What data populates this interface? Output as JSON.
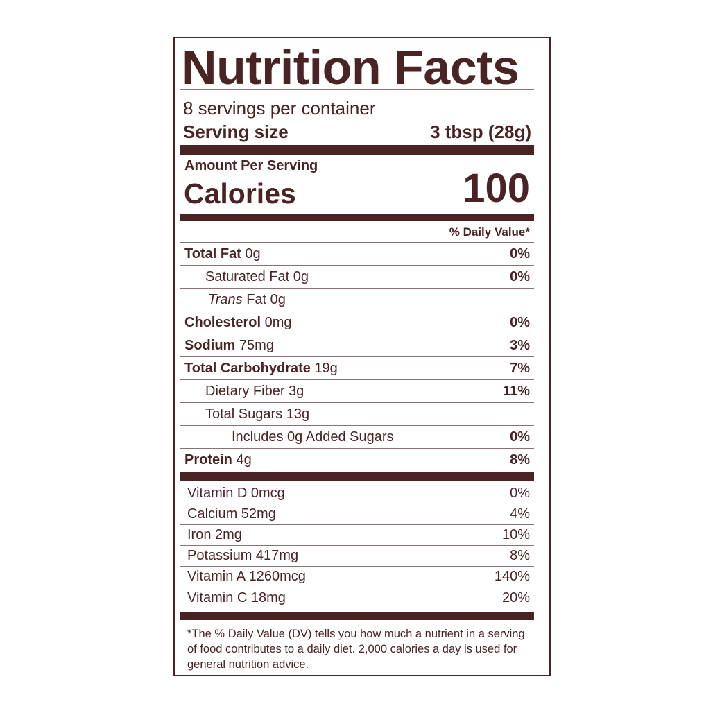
{
  "label": {
    "title": "Nutrition Facts",
    "servings_per_container": "8 servings per container",
    "serving_size_label": "Serving size",
    "serving_size_value": "3 tbsp (28g)",
    "amount_per_serving": "Amount Per Serving",
    "calories_label": "Calories",
    "calories_value": "100",
    "daily_value_header": "% Daily Value*",
    "nutrients": [
      {
        "name": "Total Fat",
        "amount": "0g",
        "dv": "0%",
        "bold": true,
        "indent": 0
      },
      {
        "name": "Saturated Fat",
        "amount": "0g",
        "dv": "0%",
        "bold": false,
        "indent": 1
      },
      {
        "name": "Trans",
        "name_suffix": "Fat",
        "amount": "0g",
        "dv": "",
        "bold": false,
        "indent": 1,
        "italic": true
      },
      {
        "name": "Cholesterol",
        "amount": "0mg",
        "dv": "0%",
        "bold": true,
        "indent": 0
      },
      {
        "name": "Sodium",
        "amount": "75mg",
        "dv": "3%",
        "bold": true,
        "indent": 0
      },
      {
        "name": "Total Carbohydrate",
        "amount": "19g",
        "dv": "7%",
        "bold": true,
        "indent": 0
      },
      {
        "name": "Dietary Fiber",
        "amount": "3g",
        "dv": "11%",
        "bold": false,
        "indent": 1
      },
      {
        "name": "Total Sugars",
        "amount": "13g",
        "dv": "",
        "bold": false,
        "indent": 1
      },
      {
        "name": "Includes 0g Added Sugars",
        "amount": "",
        "dv": "0%",
        "bold": false,
        "indent": 2
      },
      {
        "name": "Protein",
        "amount": "4g",
        "dv": "8%",
        "bold": true,
        "indent": 0
      }
    ],
    "vitamins": [
      {
        "text": "Vitamin D 0mcg",
        "dv": "0%"
      },
      {
        "text": "Calcium 52mg",
        "dv": "4%"
      },
      {
        "text": "Iron 2mg",
        "dv": "10%"
      },
      {
        "text": "Potassium 417mg",
        "dv": "8%"
      },
      {
        "text": "Vitamin A 1260mcg",
        "dv": "140%"
      },
      {
        "text": "Vitamin C 18mg",
        "dv": "20%"
      }
    ],
    "footnote": "*The % Daily Value (DV) tells you how much a nutrient in a serving of food contributes to a daily diet. 2,000 calories a day is used for general nutrition advice.",
    "color": "#4a2424"
  }
}
